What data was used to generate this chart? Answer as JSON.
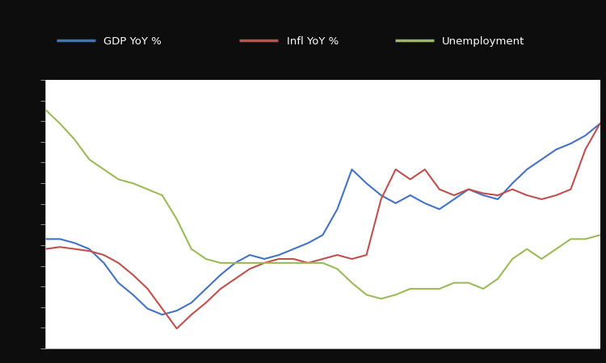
{
  "fig_bg": "#0d0d0d",
  "plot_bg": "#ffffff",
  "line_colors": [
    "#4472c4",
    "#c0504d",
    "#9bbb59"
  ],
  "line_width": 1.5,
  "legend_labels": [
    "GDP YoY %",
    "Infl YoY %",
    "Unemployment"
  ],
  "blue": [
    3.0,
    3.0,
    2.8,
    2.5,
    1.8,
    0.8,
    0.2,
    -0.5,
    -0.8,
    -0.6,
    -0.2,
    0.5,
    1.2,
    1.8,
    2.2,
    2.0,
    2.2,
    2.5,
    2.8,
    3.2,
    4.5,
    6.5,
    5.8,
    5.2,
    4.8,
    5.2,
    4.8,
    4.5,
    5.0,
    5.5,
    5.2,
    5.0,
    5.8,
    6.5,
    7.0,
    7.5,
    7.8,
    8.2,
    8.8
  ],
  "red": [
    2.5,
    2.6,
    2.5,
    2.4,
    2.2,
    1.8,
    1.2,
    0.5,
    -0.5,
    -1.5,
    -0.8,
    -0.2,
    0.5,
    1.0,
    1.5,
    1.8,
    2.0,
    2.0,
    1.8,
    2.0,
    2.2,
    2.0,
    2.2,
    5.0,
    6.5,
    6.0,
    6.5,
    5.5,
    5.2,
    5.5,
    5.3,
    5.2,
    5.5,
    5.2,
    5.0,
    5.2,
    5.5,
    7.5,
    8.8
  ],
  "green": [
    9.5,
    8.8,
    8.0,
    7.0,
    6.5,
    6.0,
    5.8,
    5.5,
    5.2,
    4.0,
    2.5,
    2.0,
    1.8,
    1.8,
    1.8,
    1.8,
    1.8,
    1.8,
    1.8,
    1.8,
    1.5,
    0.8,
    0.2,
    0.0,
    0.2,
    0.5,
    0.5,
    0.5,
    0.8,
    0.8,
    0.5,
    1.0,
    2.0,
    2.5,
    2.0,
    2.5,
    3.0,
    3.0,
    3.2
  ],
  "ylim": [
    -2.5,
    11.0
  ],
  "n_yticks": 14,
  "n_points": 39
}
